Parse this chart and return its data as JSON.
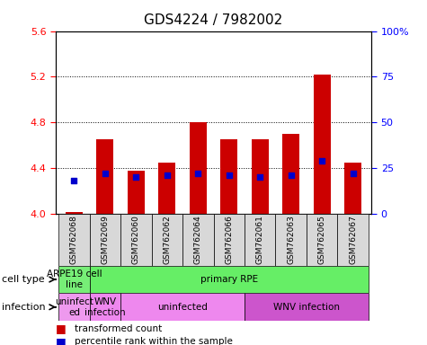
{
  "title": "GDS4224 / 7982002",
  "samples": [
    "GSM762068",
    "GSM762069",
    "GSM762060",
    "GSM762062",
    "GSM762064",
    "GSM762066",
    "GSM762061",
    "GSM762063",
    "GSM762065",
    "GSM762067"
  ],
  "transformed_counts": [
    4.02,
    4.65,
    4.38,
    4.45,
    4.8,
    4.65,
    4.65,
    4.7,
    5.22,
    4.45
  ],
  "percentile_ranks": [
    18,
    22,
    20,
    21,
    22,
    21,
    20,
    21,
    29,
    22
  ],
  "ylim_left": [
    4.0,
    5.6
  ],
  "ylim_right": [
    0,
    100
  ],
  "yticks_left": [
    4.0,
    4.4,
    4.8,
    5.2,
    5.6
  ],
  "yticks_right": [
    0,
    25,
    50,
    75,
    100
  ],
  "ytick_labels_right": [
    "0",
    "25",
    "50",
    "75",
    "100%"
  ],
  "bar_color": "#cc0000",
  "dot_color": "#0000cc",
  "title_fontsize": 11,
  "cell_type_row": {
    "label": "cell type",
    "groups": [
      {
        "text": "ARPE19 cell\nline",
        "start": 0,
        "end": 1,
        "color": "#77ee77"
      },
      {
        "text": "primary RPE",
        "start": 1,
        "end": 10,
        "color": "#66ee66"
      }
    ]
  },
  "infection_row": {
    "label": "infection",
    "groups": [
      {
        "text": "uninfect\ned",
        "start": 0,
        "end": 1,
        "color": "#ee99ee"
      },
      {
        "text": "WNV\ninfection",
        "start": 1,
        "end": 2,
        "color": "#ee88ee"
      },
      {
        "text": "uninfected",
        "start": 2,
        "end": 6,
        "color": "#ee88ee"
      },
      {
        "text": "WNV infection",
        "start": 6,
        "end": 10,
        "color": "#cc55cc"
      }
    ]
  },
  "legend_items": [
    {
      "color": "#cc0000",
      "label": "transformed count"
    },
    {
      "color": "#0000cc",
      "label": "percentile rank within the sample"
    }
  ]
}
